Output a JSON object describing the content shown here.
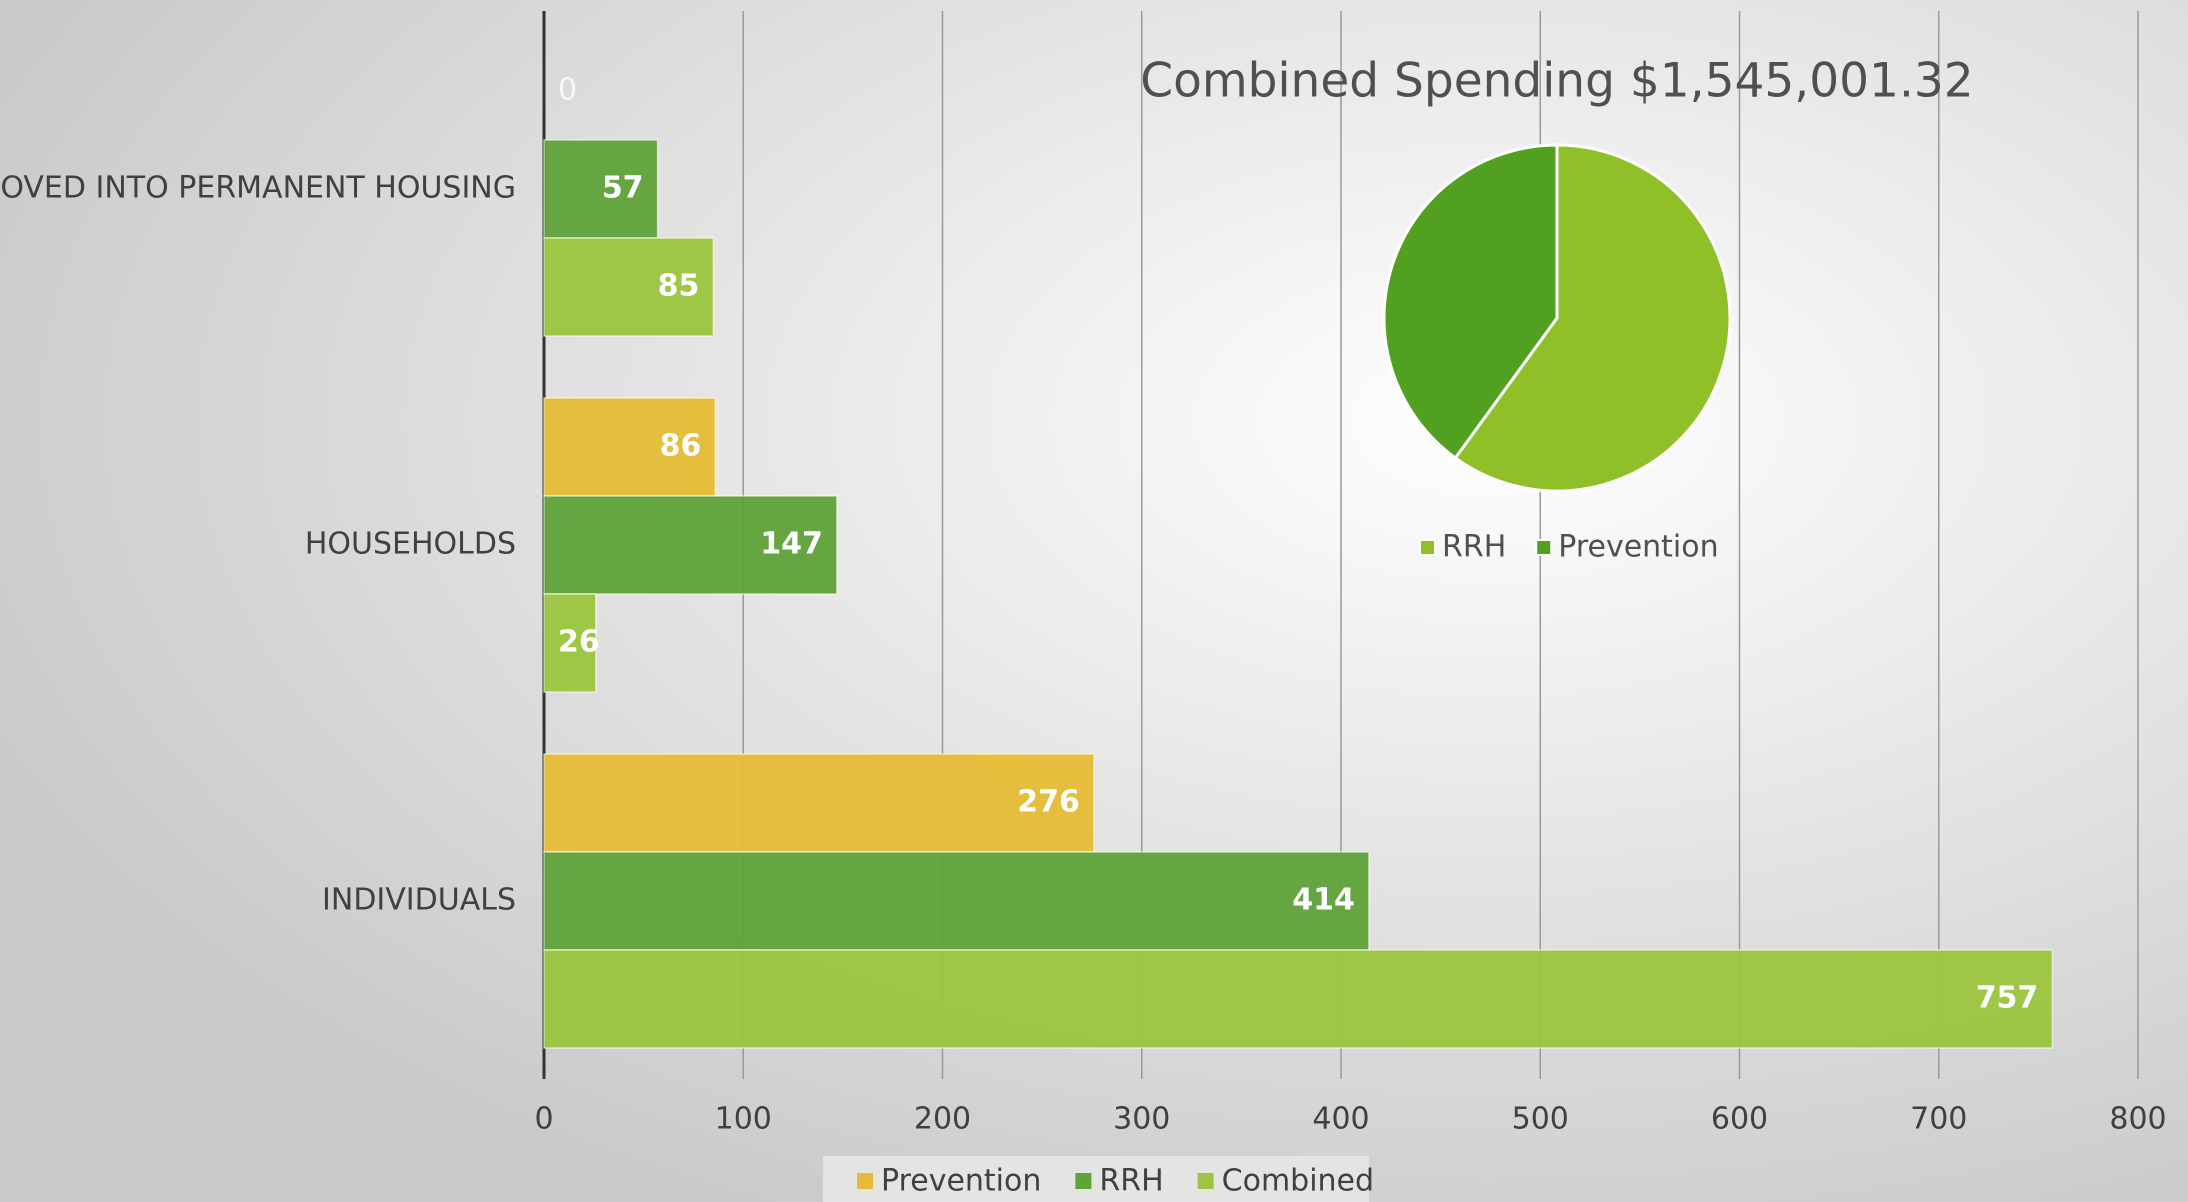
{
  "chart_data": [
    {
      "type": "hbar",
      "categories": [
        "MOVED INTO PERMANENT HOUSING",
        "HOUSEHOLDS",
        "INDIVIDUALS"
      ],
      "series": [
        {
          "name": "Prevention",
          "color": "#e5bd34",
          "values": [
            0,
            86,
            276
          ]
        },
        {
          "name": "RRH",
          "color": "#5fa33a",
          "values": [
            57,
            147,
            414
          ]
        },
        {
          "name": "Combined",
          "color": "#9cc63f",
          "values": [
            85,
            26,
            757
          ]
        }
      ],
      "xlim": [
        0,
        800
      ],
      "xticks": [
        0,
        100,
        200,
        300,
        400,
        500,
        600,
        700,
        800
      ],
      "grid": true,
      "legend": "bottom"
    },
    {
      "type": "pie",
      "title": "Combined Spending $1,545,001.32",
      "categories": [
        "RRH",
        "Prevention"
      ],
      "values": [
        60,
        40
      ],
      "colors": [
        "#8fc028",
        "#52a020"
      ],
      "legend": "bottom"
    }
  ]
}
